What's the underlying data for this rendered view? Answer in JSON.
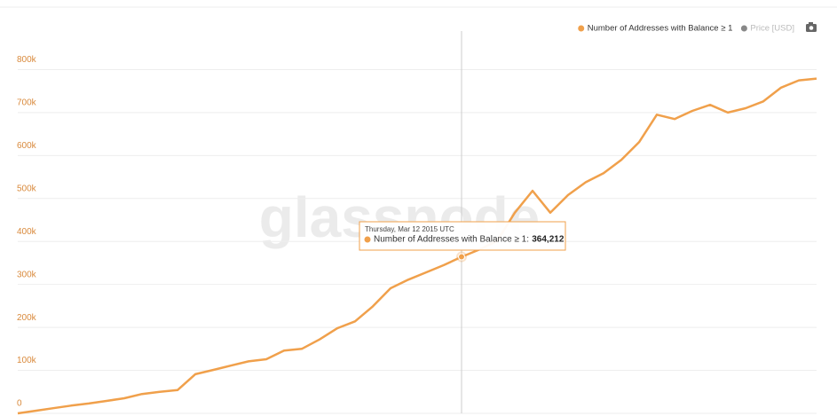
{
  "chart_data": {
    "type": "line",
    "categories": [
      null,
      null,
      null,
      null,
      null,
      null,
      null,
      null,
      null,
      null,
      null,
      null,
      null,
      null,
      null,
      null,
      null,
      null,
      null,
      null,
      null,
      null,
      null,
      null,
      null,
      null,
      null,
      null,
      null,
      null,
      null,
      null,
      null,
      null,
      null,
      null,
      null,
      null,
      null,
      null,
      null,
      null,
      null,
      null,
      null,
      null
    ],
    "series": [
      {
        "name": "Number of Addresses with Balance ≥ 1",
        "color": "#f0a04b",
        "values": [
          0,
          6000,
          12000,
          18000,
          23000,
          29000,
          35000,
          45000,
          50000,
          54000,
          91000,
          101000,
          111000,
          121000,
          126000,
          146000,
          150000,
          172000,
          198000,
          214000,
          249000,
          291000,
          311000,
          328000,
          345000,
          364212,
          381000,
          401000,
          467000,
          518000,
          467000,
          508000,
          538000,
          559000,
          590000,
          631000,
          695000,
          685000,
          704000,
          718000,
          700000,
          710000,
          726000,
          758000,
          775000,
          779000
        ]
      },
      {
        "name": "Price [USD]",
        "color": "#888888",
        "visible": false
      }
    ],
    "ylim": [
      0,
      900000
    ],
    "yticks": [
      0,
      {
        "value": 100000,
        "label": "100k"
      },
      {
        "value": 200000,
        "label": "200k"
      },
      {
        "value": 300000,
        "label": "300k"
      },
      {
        "value": 400000,
        "label": "400k"
      },
      {
        "value": 500000,
        "label": "500k"
      },
      {
        "value": 600000,
        "label": "600k"
      },
      {
        "value": 700000,
        "label": "700k"
      },
      {
        "value": 800000,
        "label": "800k"
      }
    ],
    "grid": true,
    "legend": "top-right",
    "watermark": "glassnode",
    "tooltip": {
      "title": "Thursday, Mar 12 2015 UTC",
      "label": "364,212"
    }
  }
}
